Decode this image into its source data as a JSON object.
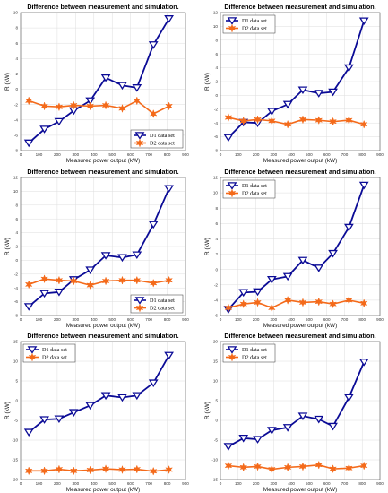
{
  "chart_data": [
    {
      "type": "line",
      "title": "Difference between measurement and simulation.",
      "xlabel": "Measured power output (kW)",
      "ylabel": "R (kW)",
      "xlim": [
        0,
        900
      ],
      "ylim": [
        -8,
        10
      ],
      "yticks": [
        -8,
        -6,
        -4,
        -2,
        0,
        2,
        4,
        6,
        8,
        10
      ],
      "xticks": [
        0,
        100,
        200,
        300,
        400,
        500,
        600,
        700,
        800,
        900
      ],
      "grid": true,
      "legend_position": "bottom-right",
      "series": [
        {
          "name": "D1 data set",
          "x": [
            45,
            130,
            210,
            290,
            380,
            465,
            555,
            635,
            725,
            810
          ],
          "y": [
            -7.0,
            -5.2,
            -4.2,
            -2.8,
            -1.5,
            1.5,
            0.5,
            0.2,
            5.8,
            9.2
          ]
        },
        {
          "name": "D2 data set",
          "x": [
            45,
            130,
            210,
            290,
            380,
            465,
            555,
            635,
            725,
            810
          ],
          "y": [
            -1.5,
            -2.2,
            -2.3,
            -2.1,
            -2.2,
            -2.1,
            -2.5,
            -1.5,
            -3.2,
            -2.2
          ]
        }
      ]
    },
    {
      "type": "line",
      "title": "",
      "xlabel": "Measured power output (kW)",
      "ylabel": "R (kW)",
      "xlim": [
        0,
        900
      ],
      "ylim": [
        -8,
        12
      ],
      "yticks": [
        -8,
        -6,
        -4,
        -2,
        0,
        2,
        4,
        6,
        8,
        10,
        12
      ],
      "xticks": [
        0,
        100,
        200,
        300,
        400,
        500,
        600,
        700,
        800,
        900
      ],
      "grid": true,
      "legend_position": "top-left",
      "series": [
        {
          "name": "D1 data set",
          "x": [
            45,
            130,
            210,
            290,
            380,
            465,
            555,
            635,
            725,
            810
          ],
          "y": [
            -6.1,
            -3.9,
            -4.0,
            -2.3,
            -1.3,
            0.8,
            0.3,
            0.5,
            4.0,
            10.8
          ]
        },
        {
          "name": "D2 data set",
          "x": [
            45,
            130,
            210,
            290,
            380,
            465,
            555,
            635,
            725,
            810
          ],
          "y": [
            -3.2,
            -3.7,
            -3.5,
            -3.7,
            -4.2,
            -3.5,
            -3.6,
            -3.8,
            -3.6,
            -4.2
          ]
        }
      ]
    },
    {
      "type": "line",
      "title": "",
      "xlabel": "Measured power output (kW)",
      "ylabel": "R (kW)",
      "xlim": [
        0,
        900
      ],
      "ylim": [
        -8,
        12
      ],
      "yticks": [
        -8,
        -6,
        -4,
        -2,
        0,
        2,
        4,
        6,
        8,
        10,
        12
      ],
      "xticks": [
        0,
        100,
        200,
        300,
        400,
        500,
        600,
        700,
        800,
        900
      ],
      "grid": true,
      "legend_position": "bottom-right",
      "series": [
        {
          "name": "D1 data set",
          "x": [
            45,
            130,
            210,
            290,
            380,
            465,
            555,
            635,
            725,
            810
          ],
          "y": [
            -6.7,
            -4.8,
            -4.6,
            -2.8,
            -1.4,
            0.7,
            0.4,
            0.8,
            5.2,
            10.4
          ]
        },
        {
          "name": "D2 data set",
          "x": [
            45,
            130,
            210,
            290,
            380,
            465,
            555,
            635,
            725,
            810
          ],
          "y": [
            -3.5,
            -2.7,
            -2.9,
            -3.0,
            -3.6,
            -3.0,
            -2.9,
            -2.9,
            -3.3,
            -2.9
          ]
        }
      ]
    },
    {
      "type": "line",
      "title": "",
      "xlabel": "Measured power output (kW)",
      "ylabel": "R (kW)",
      "xlim": [
        0,
        900
      ],
      "ylim": [
        -6,
        12
      ],
      "yticks": [
        -6,
        -4,
        -2,
        0,
        2,
        4,
        6,
        8,
        10,
        12
      ],
      "xticks": [
        0,
        100,
        200,
        300,
        400,
        500,
        600,
        700,
        800,
        900
      ],
      "grid": true,
      "legend_position": "top-left",
      "series": [
        {
          "name": "D1 data set",
          "x": [
            45,
            130,
            210,
            290,
            380,
            465,
            555,
            635,
            725,
            810
          ],
          "y": [
            -5.2,
            -3.0,
            -2.9,
            -1.3,
            -0.9,
            1.2,
            0.2,
            2.1,
            5.5,
            11.0
          ]
        },
        {
          "name": "D2 data set",
          "x": [
            45,
            130,
            210,
            290,
            380,
            465,
            555,
            635,
            725,
            810
          ],
          "y": [
            -5.0,
            -4.5,
            -4.3,
            -5.0,
            -4.0,
            -4.3,
            -4.2,
            -4.5,
            -4.0,
            -4.4
          ]
        }
      ]
    },
    {
      "type": "line",
      "title": "",
      "xlabel": "Measured power output (kW)",
      "ylabel": "R (kW)",
      "xlim": [
        0,
        900
      ],
      "ylim": [
        -20,
        15
      ],
      "yticks": [
        -20,
        -15,
        -10,
        -5,
        0,
        5,
        10,
        15
      ],
      "xticks": [
        0,
        100,
        200,
        300,
        400,
        500,
        600,
        700,
        800,
        900
      ],
      "grid": true,
      "legend_position": "top-left",
      "series": [
        {
          "name": "D1 data set",
          "x": [
            45,
            130,
            210,
            290,
            380,
            465,
            555,
            635,
            725,
            810
          ],
          "y": [
            -8.0,
            -4.8,
            -4.6,
            -3.0,
            -1.2,
            1.3,
            0.8,
            1.3,
            4.5,
            11.5
          ]
        },
        {
          "name": "D2 data set",
          "x": [
            45,
            130,
            210,
            290,
            380,
            465,
            555,
            635,
            725,
            810
          ],
          "y": [
            -17.8,
            -17.8,
            -17.4,
            -17.8,
            -17.6,
            -17.3,
            -17.5,
            -17.4,
            -17.9,
            -17.5
          ]
        }
      ]
    },
    {
      "type": "line",
      "title": "",
      "xlabel": "Measured power output (kW)",
      "ylabel": "R (kW)",
      "xlim": [
        0,
        900
      ],
      "ylim": [
        -15,
        20
      ],
      "yticks": [
        -15,
        -10,
        -5,
        0,
        5,
        10,
        15,
        20
      ],
      "xticks": [
        0,
        100,
        200,
        300,
        400,
        500,
        600,
        700,
        800,
        900
      ],
      "grid": true,
      "legend_position": "top-left",
      "series": [
        {
          "name": "D1 data set",
          "x": [
            45,
            130,
            210,
            290,
            380,
            465,
            555,
            635,
            725,
            810
          ],
          "y": [
            -6.6,
            -4.5,
            -4.8,
            -2.5,
            -1.8,
            1.1,
            0.3,
            -1.5,
            5.8,
            14.8
          ]
        },
        {
          "name": "D2 data set",
          "x": [
            45,
            130,
            210,
            290,
            380,
            465,
            555,
            635,
            725,
            810
          ],
          "y": [
            -11.5,
            -11.9,
            -11.7,
            -12.4,
            -11.9,
            -11.7,
            -11.3,
            -12.3,
            -12.1,
            -11.5
          ]
        }
      ]
    }
  ],
  "colors": {
    "d1": "#0b0b96",
    "d2": "#f46a1a",
    "grid": "#dedede",
    "axis": "#555555"
  },
  "panel_titles": [
    "Difference between measurement and simulation.",
    "Difference between measurement and simulation.",
    "Difference between measurement and simulation.",
    "Difference between measurement and simulation.",
    "Difference between measurement and simulation.",
    "Difference between measurement and simulation."
  ]
}
